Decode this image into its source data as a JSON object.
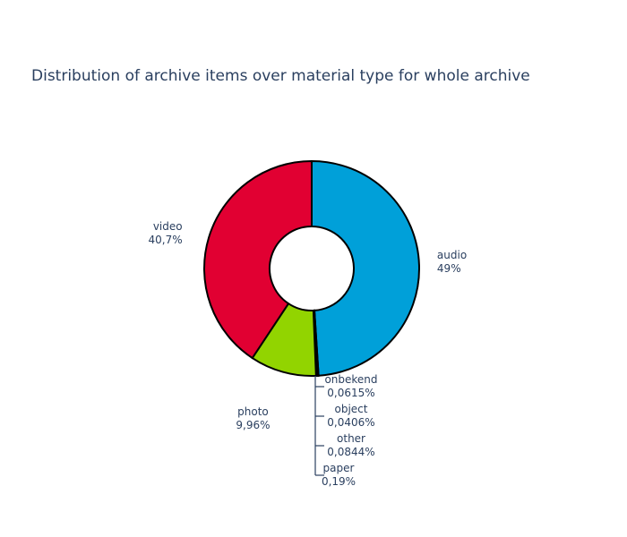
{
  "chart_data": {
    "type": "pie",
    "hole": true,
    "title": "Distribution of archive items over material type for whole archive",
    "slices": [
      {
        "name": "audio",
        "value": 49,
        "label": "audio",
        "pct_text": "49%",
        "color": "#00a0d9"
      },
      {
        "name": "onbekend",
        "value": 0.0615,
        "label": "onbekend",
        "pct_text": "0,0615%",
        "color": "#2a3f5f"
      },
      {
        "name": "object",
        "value": 0.0406,
        "label": "object",
        "pct_text": "0,0406%",
        "color": "#2a3f5f"
      },
      {
        "name": "other",
        "value": 0.0844,
        "label": "other",
        "pct_text": "0,0844%",
        "color": "#2a3f5f"
      },
      {
        "name": "paper",
        "value": 0.19,
        "label": "paper",
        "pct_text": "0,19%",
        "color": "#2a3f5f"
      },
      {
        "name": "photo",
        "value": 9.96,
        "label": "photo",
        "pct_text": "9,96%",
        "color": "#92d400"
      },
      {
        "name": "video",
        "value": 40.7,
        "label": "video",
        "pct_text": "40,7%",
        "color": "#e10032"
      }
    ],
    "direction": "clockwise",
    "start": "top"
  }
}
